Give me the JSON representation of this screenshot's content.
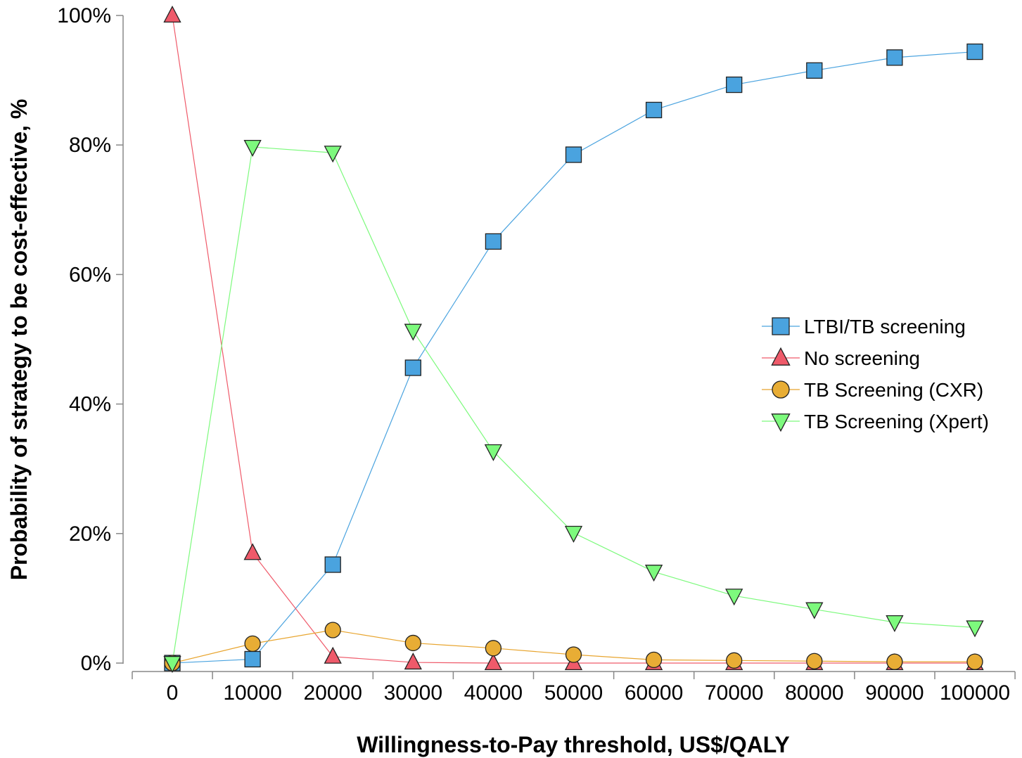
{
  "chart_data": {
    "type": "line",
    "xlabel": "Willingness-to-Pay threshold, US$/QALY",
    "ylabel": "Probability of strategy to be cost-effective, %",
    "x": [
      0,
      10000,
      20000,
      30000,
      40000,
      50000,
      60000,
      70000,
      80000,
      90000,
      100000
    ],
    "x_tick_labels": [
      "0",
      "10000",
      "20000",
      "30000",
      "40000",
      "50000",
      "60000",
      "70000",
      "80000",
      "90000",
      "100000"
    ],
    "y_tick_labels": [
      "0%",
      "20%",
      "40%",
      "60%",
      "80%",
      "100%"
    ],
    "y_ticks": [
      0,
      20,
      40,
      60,
      80,
      100
    ],
    "xlim": [
      -5000,
      105000
    ],
    "ylim": [
      0,
      100
    ],
    "grid": false,
    "legend_position": "right",
    "series": [
      {
        "name": "LTBI/TB screening",
        "marker": "square",
        "color": "#4aa3df",
        "line_color": "#4aa3df",
        "values": [
          0,
          0.6,
          15.2,
          45.6,
          65.1,
          78.5,
          85.4,
          89.3,
          91.5,
          93.5,
          94.4
        ]
      },
      {
        "name": "No screening",
        "marker": "triangle-up",
        "color": "#ef5a6a",
        "line_color": "#ef5a6a",
        "values": [
          100,
          17,
          1,
          0.1,
          0,
          0,
          0,
          0,
          0,
          0,
          0
        ]
      },
      {
        "name": "TB Screening (CXR)",
        "marker": "circle",
        "color": "#e8ad35",
        "line_color": "#e8a52f",
        "values": [
          0,
          3,
          5.1,
          3.1,
          2.3,
          1.3,
          0.5,
          0.4,
          0.3,
          0.2,
          0.2
        ]
      },
      {
        "name": "TB Screening (Xpert)",
        "marker": "triangle-down",
        "color": "#7dfa7d",
        "line_color": "#7dfa7d",
        "values": [
          0,
          79.7,
          78.8,
          51.3,
          32.7,
          20.1,
          14.1,
          10.4,
          8.3,
          6.3,
          5.5
        ]
      }
    ]
  }
}
